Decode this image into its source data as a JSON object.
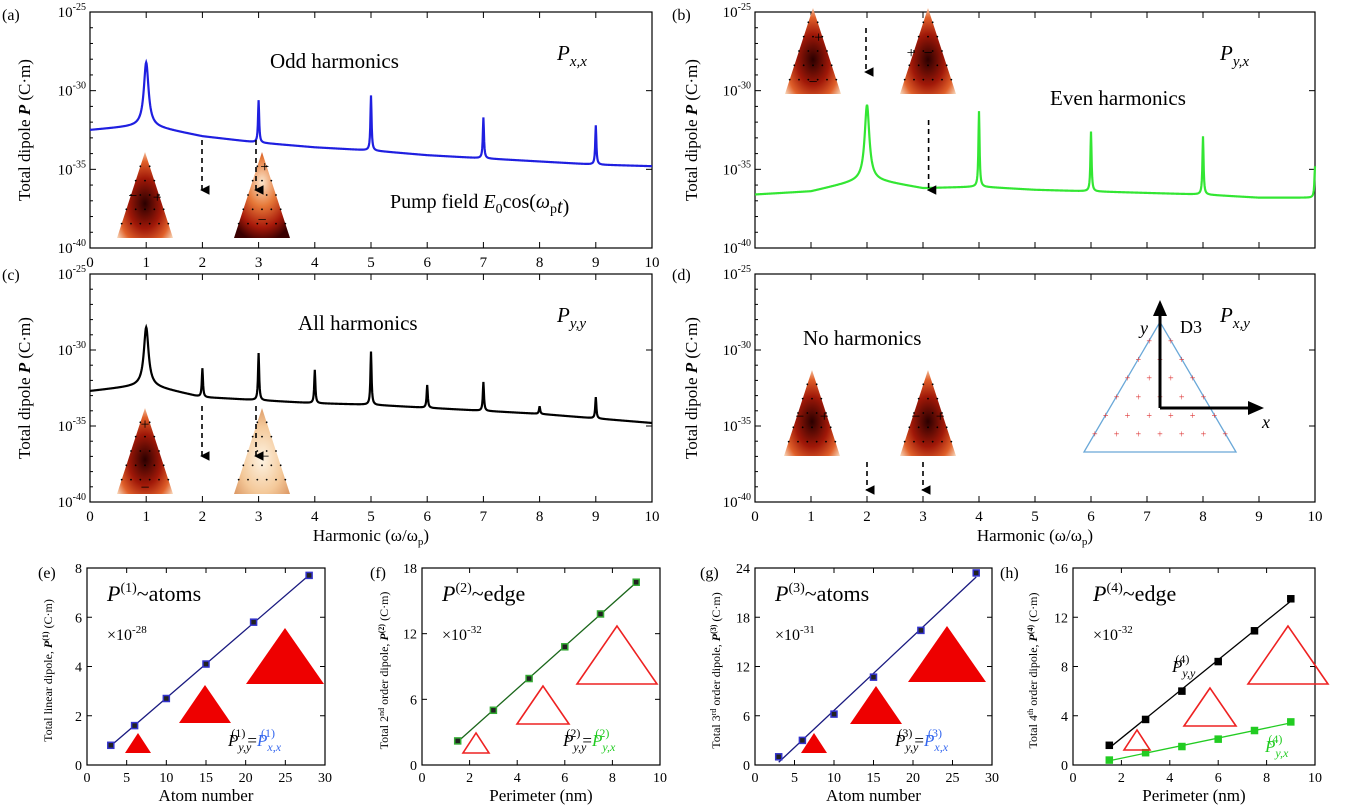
{
  "chart_data": [
    {
      "id": "a",
      "type": "line",
      "panel_label": "(a)",
      "series_label_main": "P",
      "series_label_sub": "x,x",
      "annotation": "Odd harmonics",
      "pump_prefix": "Pump field ",
      "pump_E": "E",
      "pump_sub0": "0",
      "pump_cos": "cos(",
      "pump_omega": "ω",
      "pump_p": "p",
      "pump_t": "t",
      "pump_close": ")",
      "color": "#1f1fe0",
      "ylabel_main": "Total dipole ",
      "ylabel_bold": "P",
      "ylabel_unit": " (C·m)",
      "xlim": [
        0,
        10
      ],
      "ylim_exp": [
        -40,
        -25
      ],
      "xticks": [
        "0",
        "1",
        "2",
        "3",
        "4",
        "5",
        "6",
        "7",
        "8",
        "9",
        "10"
      ],
      "yticks": [
        "10-25",
        "10-30",
        "10-35",
        "10-40"
      ],
      "yticks_parts": [
        [
          "10",
          "-25"
        ],
        [
          "10",
          "-30"
        ],
        [
          "10",
          "-35"
        ],
        [
          "10",
          "-40"
        ]
      ],
      "baseline_exp": [
        [
          0,
          -32.5
        ],
        [
          1,
          -32.2
        ],
        [
          2,
          -32.9
        ],
        [
          3,
          -33.3
        ],
        [
          4,
          -33.6
        ],
        [
          5,
          -33.8
        ],
        [
          6,
          -34.1
        ],
        [
          7,
          -34.3
        ],
        [
          8,
          -34.5
        ],
        [
          9,
          -34.7
        ],
        [
          10,
          -34.8
        ]
      ],
      "peaks": [
        {
          "x": 1,
          "exp": -28.2
        },
        {
          "x": 3,
          "exp": -30.6
        },
        {
          "x": 5,
          "exp": -30.3
        },
        {
          "x": 7,
          "exp": -31.7
        },
        {
          "x": 9,
          "exp": -32.2
        }
      ],
      "arrows_x": [
        2,
        3
      ]
    },
    {
      "id": "b",
      "type": "line",
      "panel_label": "(b)",
      "series_label_main": "P",
      "series_label_sub": "y,x",
      "annotation": "Even harmonics",
      "color": "#33e633",
      "ylabel_main": "Total dipole ",
      "ylabel_bold": "P",
      "ylabel_unit": " (C·m)",
      "xlim": [
        0,
        10
      ],
      "ylim_exp": [
        -40,
        -25
      ],
      "yticks_parts": [
        [
          "10",
          "-25"
        ],
        [
          "10",
          "-30"
        ],
        [
          "10",
          "-35"
        ],
        [
          "10",
          "-40"
        ]
      ],
      "baseline_exp": [
        [
          0,
          -36.6
        ],
        [
          1,
          -36.4
        ],
        [
          2,
          -35.6
        ],
        [
          3,
          -36.2
        ],
        [
          4,
          -36.1
        ],
        [
          5,
          -36.3
        ],
        [
          6,
          -36.4
        ],
        [
          7,
          -36.5
        ],
        [
          8,
          -36.6
        ],
        [
          9,
          -36.8
        ],
        [
          10,
          -36.8
        ]
      ],
      "peaks": [
        {
          "x": 2,
          "exp": -30.9
        },
        {
          "x": 4,
          "exp": -31.3
        },
        {
          "x": 6,
          "exp": -32.6
        },
        {
          "x": 8,
          "exp": -32.9
        },
        {
          "x": 10,
          "exp": -34.8
        }
      ],
      "arrows_x": [
        3.1
      ]
    },
    {
      "id": "c",
      "type": "line",
      "panel_label": "(c)",
      "series_label_main": "P",
      "series_label_sub": "y,y",
      "annotation": "All harmonics",
      "color": "#000000",
      "ylabel_main": "Total dipole ",
      "ylabel_bold": "P",
      "ylabel_unit": " (C·m)",
      "xlim": [
        0,
        10
      ],
      "ylim_exp": [
        -40,
        -25
      ],
      "xticks": [
        "0",
        "1",
        "2",
        "3",
        "4",
        "5",
        "6",
        "7",
        "8",
        "9",
        "10"
      ],
      "xlabel": "Harmonic (ω/ω",
      "xlabel_sub": "p",
      "xlabel_close": ")",
      "yticks_parts": [
        [
          "10",
          "-25"
        ],
        [
          "10",
          "-30"
        ],
        [
          "10",
          "-35"
        ],
        [
          "10",
          "-40"
        ]
      ],
      "baseline_exp": [
        [
          0,
          -32.7
        ],
        [
          1,
          -32.3
        ],
        [
          2,
          -33.1
        ],
        [
          3,
          -33.3
        ],
        [
          4,
          -33.5
        ],
        [
          5,
          -33.6
        ],
        [
          6,
          -33.8
        ],
        [
          7,
          -34.0
        ],
        [
          8,
          -34.2
        ],
        [
          9,
          -34.5
        ],
        [
          10,
          -34.8
        ]
      ],
      "peaks": [
        {
          "x": 1,
          "exp": -28.5
        },
        {
          "x": 2,
          "exp": -31.2
        },
        {
          "x": 3,
          "exp": -30.2
        },
        {
          "x": 4,
          "exp": -31.3
        },
        {
          "x": 5,
          "exp": -30.1
        },
        {
          "x": 6,
          "exp": -32.3
        },
        {
          "x": 7,
          "exp": -32.1
        },
        {
          "x": 8,
          "exp": -33.7
        },
        {
          "x": 9,
          "exp": -33.1
        }
      ],
      "arrows_x": [
        2,
        3
      ]
    },
    {
      "id": "d",
      "type": "line",
      "panel_label": "(d)",
      "series_label_main": "P",
      "series_label_sub": "x,y",
      "annotation": "No harmonics",
      "d3_label": "D3",
      "axis_x_label": "x",
      "axis_y_label": "y",
      "ylabel_main": "Total dipole ",
      "ylabel_bold": "P",
      "ylabel_unit": " (C·m)",
      "xlim": [
        0,
        10
      ],
      "ylim_exp": [
        -40,
        -25
      ],
      "xticks": [
        "0",
        "1",
        "2",
        "3",
        "4",
        "5",
        "6",
        "7",
        "8",
        "9",
        "10"
      ],
      "xlabel": "Harmonic (ω/ω",
      "xlabel_sub": "p",
      "xlabel_close": ")",
      "yticks_parts": [
        [
          "10",
          "-25"
        ],
        [
          "10",
          "-30"
        ],
        [
          "10",
          "-35"
        ],
        [
          "10",
          "-40"
        ]
      ],
      "arrows_x": [
        2,
        3
      ]
    },
    {
      "id": "e",
      "type": "scatter",
      "panel_label": "(e)",
      "title_P": "P",
      "title_sup": "(1)",
      "title_rest": "~atoms",
      "multiplier": "×10",
      "multiplier_exp": "-28",
      "ylabel": "Total linear dipole, ",
      "ylabel_bold": "P",
      "ylabel_sup": "(1)",
      "ylabel_unit": " (C·m)",
      "xlabel": "Atom number",
      "xlim": [
        0,
        30
      ],
      "ylim": [
        0,
        8
      ],
      "xticks": [
        "0",
        "5",
        "10",
        "15",
        "20",
        "25",
        "30"
      ],
      "yticks": [
        "0",
        "2",
        "4",
        "6",
        "8"
      ],
      "x": [
        3,
        6,
        10,
        15,
        21,
        28
      ],
      "y": [
        0.8,
        1.6,
        2.7,
        4.1,
        5.8,
        7.7
      ],
      "marker_color": "#3333cc",
      "line_color": "#1a1a80",
      "eq_left": "P",
      "eq_left_sub": "y,y",
      "eq_left_sup": "(1)",
      "eq_eq": "=",
      "eq_right": "P",
      "eq_right_sub": "x,x",
      "eq_right_sup": "(1)",
      "eq_color": "#3366ee",
      "shape": "filled"
    },
    {
      "id": "f",
      "type": "scatter",
      "panel_label": "(f)",
      "title_P": "P",
      "title_sup": "(2)",
      "title_rest": "~edge",
      "multiplier": "×10",
      "multiplier_exp": "-32",
      "ylabel": "Total 2",
      "ylabel_ord": "nd",
      "ylabel_rest": " order dipole, ",
      "ylabel_bold": "P",
      "ylabel_sup": "(2)",
      "ylabel_unit": " (C·m)",
      "xlabel": "Perimeter (nm)",
      "xlim": [
        0,
        10
      ],
      "ylim": [
        0,
        18
      ],
      "xticks": [
        "0",
        "2",
        "4",
        "6",
        "8",
        "10"
      ],
      "yticks": [
        "0",
        "6",
        "12",
        "18"
      ],
      "x": [
        1.5,
        3,
        4.5,
        6,
        7.5,
        9
      ],
      "y": [
        2.2,
        5.0,
        7.9,
        10.8,
        13.8,
        16.7
      ],
      "marker_color": "#33aa33",
      "line_color": "#1a661a",
      "eq_left": "P",
      "eq_left_sub": "y,y",
      "eq_left_sup": "(2)",
      "eq_eq": "=",
      "eq_right": "P",
      "eq_right_sub": "y,x",
      "eq_right_sup": "(2)",
      "eq_color": "#22cc22",
      "shape": "outline"
    },
    {
      "id": "g",
      "type": "scatter",
      "panel_label": "(g)",
      "title_P": "P",
      "title_sup": "(3)",
      "title_rest": "~atoms",
      "multiplier": "×10",
      "multiplier_exp": "-31",
      "ylabel": "Total 3",
      "ylabel_ord": "rd",
      "ylabel_rest": " order dipole, ",
      "ylabel_bold": "P",
      "ylabel_sup": "(3)",
      "ylabel_unit": " (C·m)",
      "xlabel": "Atom number",
      "xlim": [
        0,
        30
      ],
      "ylim": [
        0,
        24
      ],
      "xticks": [
        "0",
        "5",
        "10",
        "15",
        "20",
        "25",
        "30"
      ],
      "yticks": [
        "0",
        "6",
        "12",
        "18",
        "24"
      ],
      "x": [
        3,
        6,
        10,
        15,
        21,
        28
      ],
      "y": [
        1.0,
        3.0,
        6.2,
        10.7,
        16.4,
        23.4
      ],
      "marker_color": "#3333cc",
      "line_color": "#1a1a80",
      "eq_left": "P",
      "eq_left_sub": "y,y",
      "eq_left_sup": "(3)",
      "eq_eq": "=",
      "eq_right": "P",
      "eq_right_sub": "x,x",
      "eq_right_sup": "(3)",
      "eq_color": "#3366ee",
      "shape": "filled"
    },
    {
      "id": "h",
      "type": "scatter",
      "panel_label": "(h)",
      "title_P": "P",
      "title_sup": "(4)",
      "title_rest": "~edge",
      "multiplier": "×10",
      "multiplier_exp": "-32",
      "ylabel": "Total 4",
      "ylabel_ord": "th",
      "ylabel_rest": " order dipole, ",
      "ylabel_bold": "P",
      "ylabel_sup": "(4)",
      "ylabel_unit": " (C·m)",
      "xlabel": "Perimeter (nm)",
      "xlim": [
        0,
        10
      ],
      "ylim": [
        0,
        16
      ],
      "xticks": [
        "0",
        "2",
        "4",
        "6",
        "8",
        "10"
      ],
      "yticks": [
        "0",
        "4",
        "8",
        "12",
        "16"
      ],
      "series": [
        {
          "label_main": "P",
          "label_sub": "y,y",
          "label_sup": "(4)",
          "x": [
            1.5,
            3,
            4.5,
            6,
            7.5,
            9
          ],
          "y": [
            1.6,
            3.7,
            6.0,
            8.4,
            10.9,
            13.5
          ],
          "color": "#000000"
        },
        {
          "label_main": "P",
          "label_sub": "y,x",
          "label_sup": "(4)",
          "x": [
            1.5,
            3,
            4.5,
            6,
            7.5,
            9
          ],
          "y": [
            0.4,
            1.0,
            1.5,
            2.1,
            2.8,
            3.5
          ],
          "color": "#22cc22"
        }
      ],
      "shape": "outline"
    }
  ]
}
